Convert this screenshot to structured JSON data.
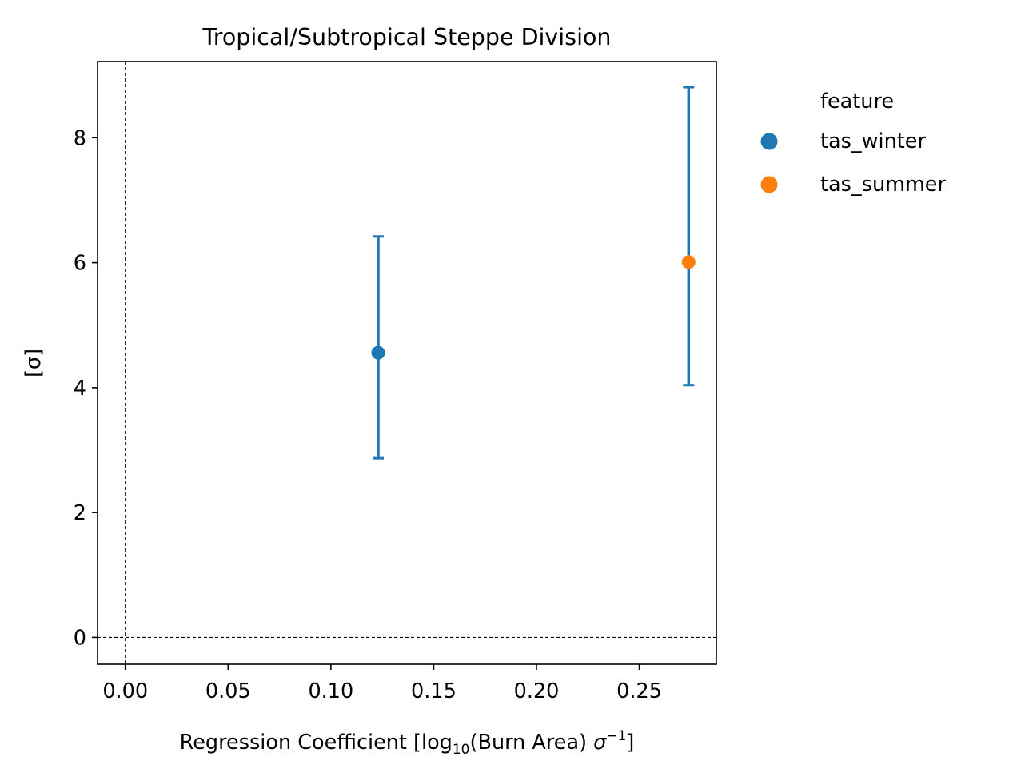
{
  "chart_data": {
    "type": "scatter",
    "title": "Tropical/Subtropical Steppe Division",
    "xlabel": {
      "main": "Regression Coefficient [log",
      "sub": "10",
      "mid": "(Burn Area) ",
      "sigma": "σ",
      "sup": "−1",
      "end": "]"
    },
    "ylabel": "[σ]",
    "xlim": [
      -0.0135,
      0.2875
    ],
    "ylim": [
      -0.43,
      9.22
    ],
    "xticks": [
      0.0,
      0.05,
      0.1,
      0.15,
      0.2,
      0.25
    ],
    "xtick_labels": [
      "0.00",
      "0.05",
      "0.10",
      "0.15",
      "0.20",
      "0.25"
    ],
    "yticks": [
      0,
      2,
      4,
      6,
      8
    ],
    "ytick_labels": [
      "0",
      "2",
      "4",
      "6",
      "8"
    ],
    "reference_lines": {
      "x": 0,
      "y": 0,
      "style": "dashed"
    },
    "grid": false,
    "legend": {
      "title": "feature",
      "placement": "outside-right-top"
    },
    "series": [
      {
        "name": "tas_winter",
        "color": "#1f77b4",
        "x": [
          0.123
        ],
        "y": [
          4.56
        ],
        "error_low": [
          2.87
        ],
        "error_high": [
          6.42
        ]
      },
      {
        "name": "tas_summer",
        "color": "#ff7f0e",
        "x": [
          0.274
        ],
        "y": [
          6.01
        ],
        "error_low": [
          4.04
        ],
        "error_high": [
          8.81
        ]
      }
    ],
    "errorbar_color": "#1f77b4"
  }
}
